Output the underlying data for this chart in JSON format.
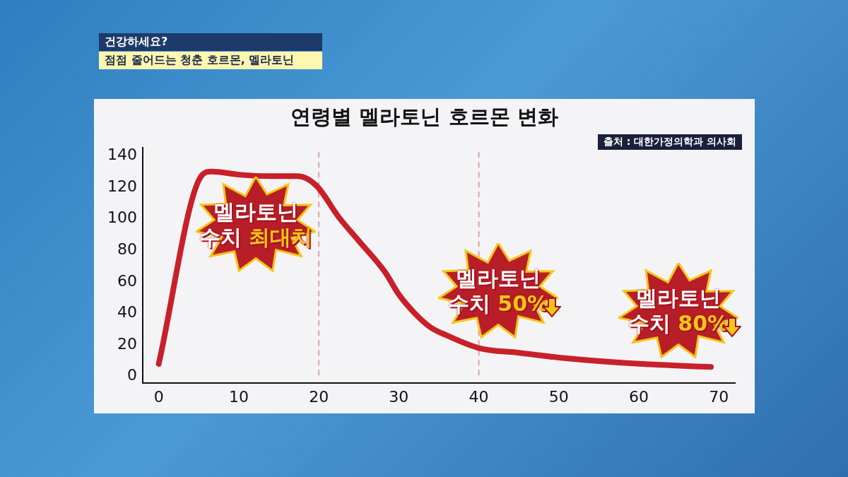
{
  "chart_data": {
    "type": "line",
    "title": "연령별 멜라토닌 호르몬 변화",
    "x": [
      0,
      5.3,
      6.6,
      10,
      14,
      17.4,
      19.7,
      22.5,
      25,
      28.3,
      30,
      32,
      34,
      36,
      40,
      45,
      50,
      60,
      69
    ],
    "series": [
      {
        "color": "#c8202a",
        "values": [
          8,
          127,
          130,
          128,
          127,
          127,
          121,
          101,
          86,
          66,
          52,
          40,
          31,
          26,
          18,
          15,
          12,
          8,
          6
        ]
      }
    ],
    "xlim": [
      -2,
      72
    ],
    "xticks": [
      0,
      10,
      20,
      30,
      40,
      50,
      60,
      70
    ],
    "ylim": [
      -4,
      145
    ],
    "yticks": [
      0,
      20,
      40,
      60,
      80,
      100,
      120,
      140
    ],
    "grid": false,
    "legend": false,
    "marker": "none",
    "line_style": "solid",
    "ref_lines": [
      {
        "axis": "x",
        "value": 20,
        "color": "#e2a2aa",
        "line_style": "dashed"
      },
      {
        "axis": "x",
        "value": 40,
        "color": "#e2a2aa",
        "line_style": "dashed"
      }
    ],
    "annotations": [
      "건강하세요?",
      "점점 줄어드는 청춘 호르몬, 멜라토닌",
      "출처 : 대한가정의학과 의사회",
      "멜라토닌 수치 최대치",
      "멜라토닌 수치 50%",
      "멜라토닌 수치 80%"
    ]
  }
}
